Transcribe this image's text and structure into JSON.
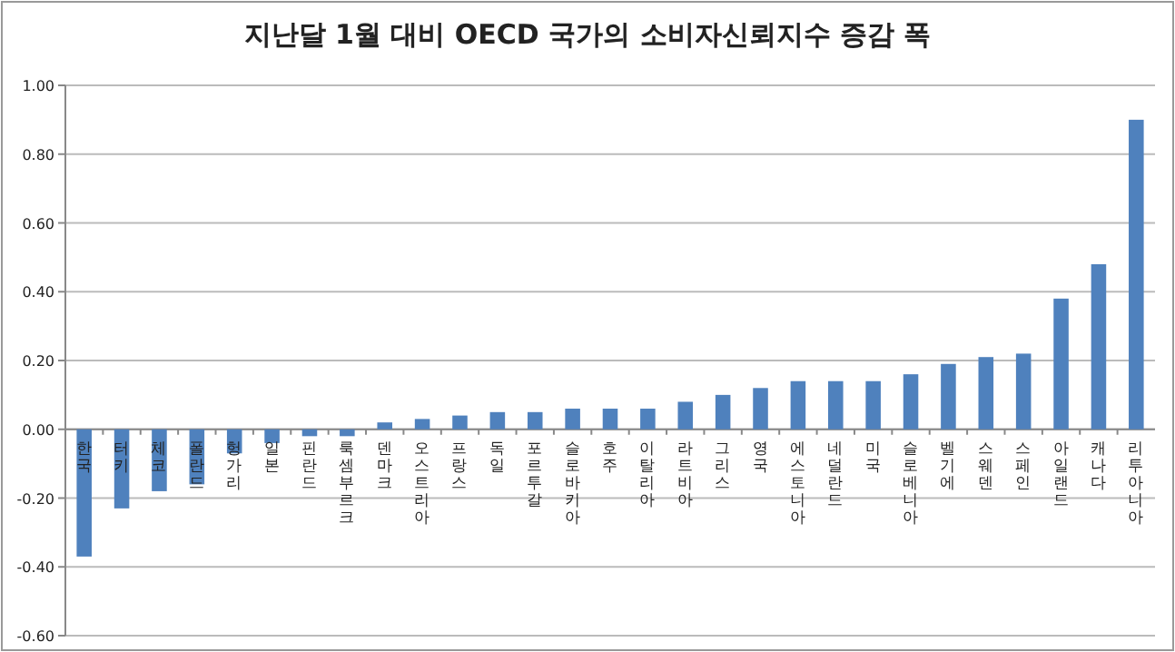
{
  "chart_data": {
    "type": "bar",
    "title": "지난달 1월 대비 OECD 국가의 소비자신뢰지수 증감 폭",
    "categories": [
      "한국",
      "터키",
      "체코",
      "폴란드",
      "헝가리",
      "일본",
      "핀란드",
      "룩셈부르크",
      "덴마크",
      "오스트리아",
      "프랑스",
      "독일",
      "포르투갈",
      "슬로바키아",
      "호주",
      "이탈리아",
      "라트비아",
      "그리스",
      "영국",
      "에스토니아",
      "네덜란드",
      "미국",
      "슬로베니아",
      "벨기에",
      "스웨덴",
      "스페인",
      "아일랜드",
      "캐나다",
      "리투아니아"
    ],
    "values": [
      -0.37,
      -0.23,
      -0.18,
      -0.16,
      -0.07,
      -0.04,
      -0.02,
      -0.02,
      0.02,
      0.03,
      0.04,
      0.05,
      0.05,
      0.06,
      0.06,
      0.06,
      0.08,
      0.1,
      0.12,
      0.14,
      0.14,
      0.14,
      0.16,
      0.19,
      0.21,
      0.22,
      0.38,
      0.48,
      0.9
    ],
    "color": "#4f81bd",
    "ylim": [
      -0.6,
      1.0
    ],
    "yticks": [
      {
        "value": -0.6,
        "label": "-0.60"
      },
      {
        "value": -0.4,
        "label": "-0.40"
      },
      {
        "value": -0.2,
        "label": "-0.20"
      },
      {
        "value": 0,
        "label": "0.00"
      },
      {
        "value": 0.2,
        "label": "0.20"
      },
      {
        "value": 0.4,
        "label": "0.40"
      },
      {
        "value": 0.6,
        "label": "0.60"
      },
      {
        "value": 0.8,
        "label": "0.80"
      },
      {
        "value": 1.0,
        "label": "1.00"
      }
    ],
    "grid": true
  }
}
